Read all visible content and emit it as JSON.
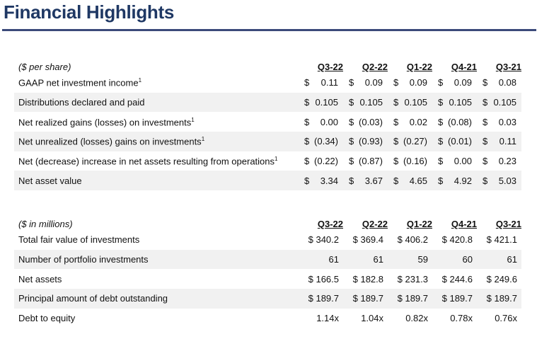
{
  "title": "Financial Highlights",
  "per_share": {
    "caption": "($ per share)",
    "columns": [
      "Q3-22",
      "Q2-22",
      "Q1-22",
      "Q4-21",
      "Q3-21"
    ],
    "rows": [
      {
        "label": "GAAP net investment income",
        "note": "1",
        "values": [
          "0.11",
          "0.09",
          "0.09",
          "0.09",
          "0.08"
        ]
      },
      {
        "label": "Distributions declared and paid",
        "note": "",
        "values": [
          "0.105",
          "0.105",
          "0.105",
          "0.105",
          "0.105"
        ]
      },
      {
        "label": "Net realized gains (losses) on investments",
        "note": "1",
        "values": [
          "0.00",
          "(0.03)",
          "0.02",
          "(0.08)",
          "0.03"
        ]
      },
      {
        "label": "Net unrealized (losses) gains on investments",
        "note": "1",
        "values": [
          "(0.34)",
          "(0.93)",
          "(0.27)",
          "(0.01)",
          "0.11"
        ]
      },
      {
        "label": "Net (decrease) increase in net assets resulting from operations",
        "note": "1",
        "values": [
          "(0.22)",
          "(0.87)",
          "(0.16)",
          "0.00",
          "0.23"
        ]
      },
      {
        "label": "Net asset value",
        "note": "",
        "values": [
          "3.34",
          "3.67",
          "4.65",
          "4.92",
          "5.03"
        ]
      }
    ]
  },
  "millions": {
    "caption": "($ in millions)",
    "columns": [
      "Q3-22",
      "Q2-22",
      "Q1-22",
      "Q4-21",
      "Q3-21"
    ],
    "rows": [
      {
        "label": "Total fair value of investments",
        "values": [
          "$ 340.2",
          "$ 369.4",
          "$ 406.2",
          "$ 420.8",
          "$ 421.1"
        ]
      },
      {
        "label": "Number of portfolio investments",
        "values": [
          "61",
          "61",
          "59",
          "60",
          "61"
        ]
      },
      {
        "label": "Net assets",
        "values": [
          "$ 166.5",
          "$ 182.8",
          "$ 231.3",
          "$ 244.6",
          "$ 249.6"
        ]
      },
      {
        "label": "Principal amount of debt outstanding",
        "values": [
          "$ 189.7",
          "$ 189.7",
          "$ 189.7",
          "$ 189.7",
          "$ 189.7"
        ]
      },
      {
        "label": "Debt to equity",
        "values": [
          "1.14x",
          "1.04x",
          "0.82x",
          "0.78x",
          "0.76x"
        ]
      }
    ]
  },
  "currency_symbol": "$"
}
